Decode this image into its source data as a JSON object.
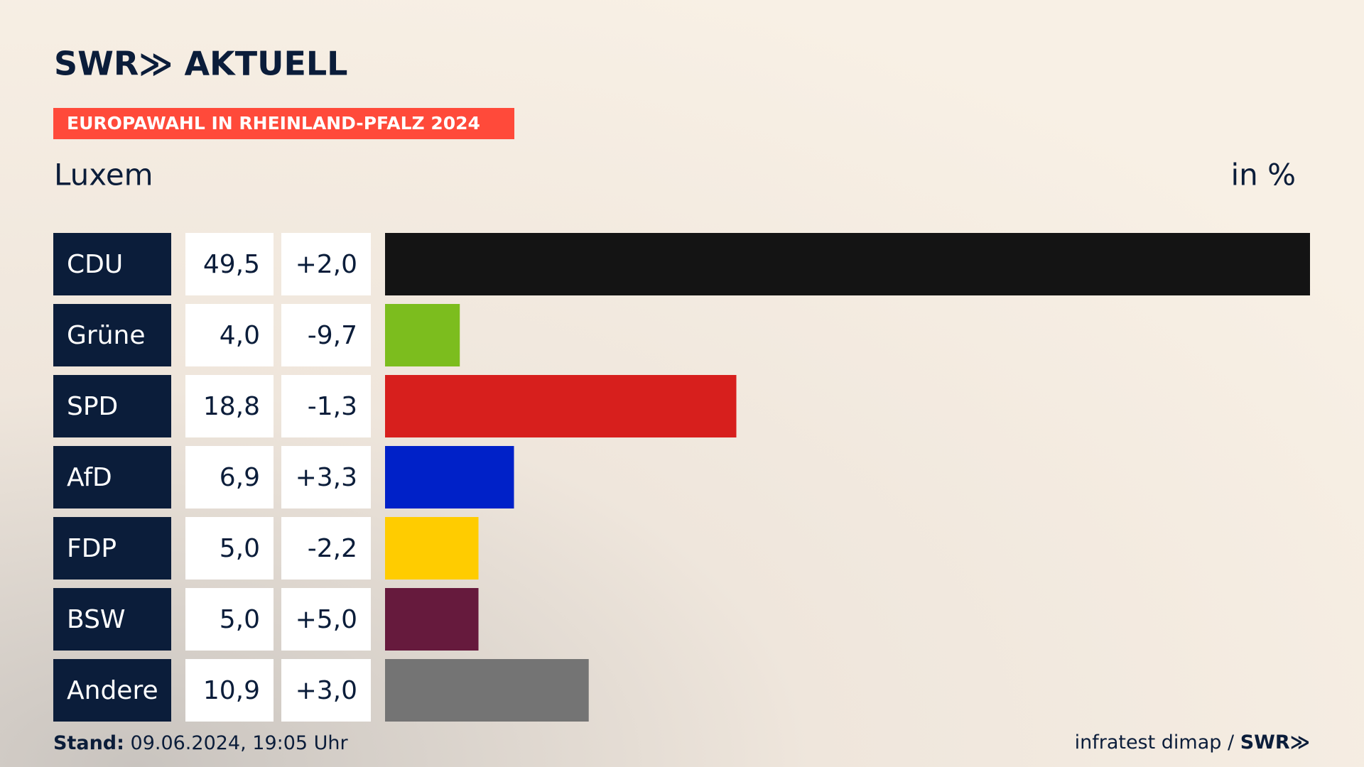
{
  "header": {
    "logo": "SWR≫ AKTUELL"
  },
  "chart_data": {
    "type": "bar",
    "banner": "EUROPAWAHL IN RHEINLAND-PFALZ 2024",
    "title": "Luxem",
    "unit_label": "in %",
    "categories": [
      "CDU",
      "Grüne",
      "SPD",
      "AfD",
      "FDP",
      "BSW",
      "Andere"
    ],
    "values": [
      49.5,
      4.0,
      18.8,
      6.9,
      5.0,
      5.0,
      10.9
    ],
    "value_labels": [
      "49,5",
      "4,0",
      "18,8",
      "6,9",
      "5,0",
      "5,0",
      "10,9"
    ],
    "changes": [
      2.0,
      -9.7,
      -1.3,
      3.3,
      -2.2,
      5.0,
      3.0
    ],
    "change_labels": [
      "+2,0",
      "-9,7",
      "-1,3",
      "+3,3",
      "-2,2",
      "+5,0",
      "+3,0"
    ],
    "colors": [
      "#141414",
      "#7cbd1e",
      "#d71f1d",
      "#0021c8",
      "#ffcc00",
      "#661a3d",
      "#747474"
    ],
    "xlim": [
      0,
      49.5
    ]
  },
  "footer": {
    "stand_label": "Stand:",
    "stand": "09.06.2024, 19:05 Uhr",
    "source": "infratest dimap /",
    "source_logo": "SWR≫"
  }
}
